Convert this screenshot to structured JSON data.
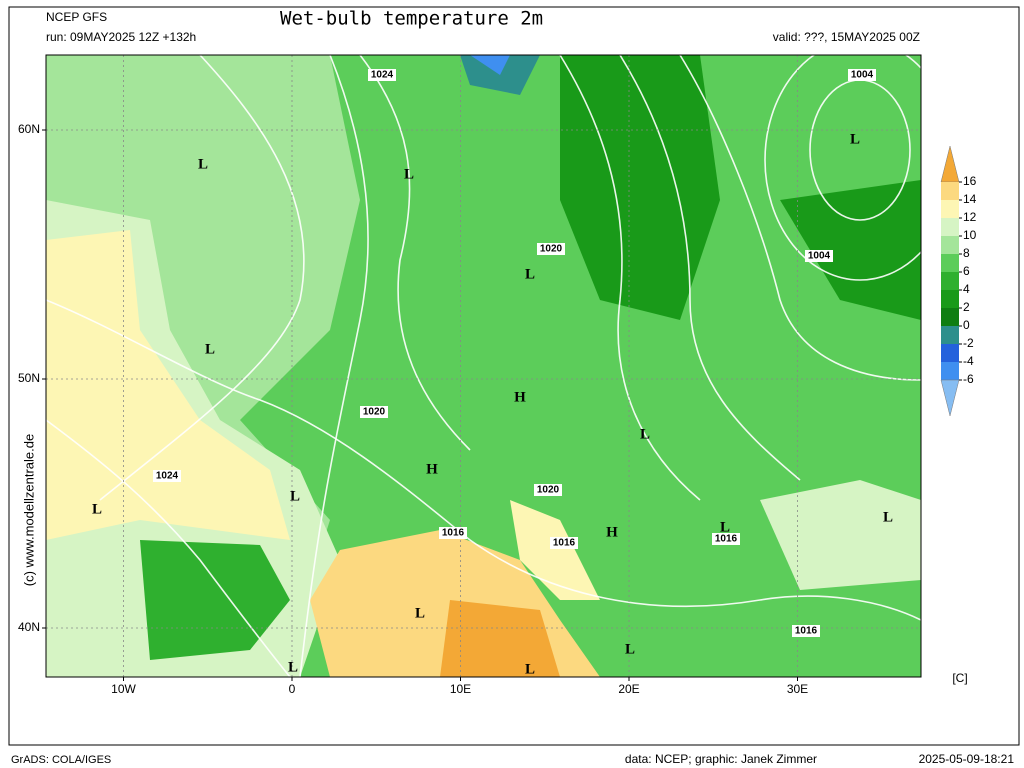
{
  "header": {
    "model": "NCEP GFS",
    "title": "Wet-bulb temperature 2m",
    "run": "run: 09MAY2025 12Z +132h",
    "valid": "valid: ???, 15MAY2025 00Z"
  },
  "map": {
    "lat_ticks": [
      {
        "value": 60,
        "label": "60N"
      },
      {
        "value": 50,
        "label": "50N"
      },
      {
        "value": 40,
        "label": "40N"
      }
    ],
    "lon_ticks": [
      {
        "value": -10,
        "label": "10W"
      },
      0,
      {
        "value": 10,
        "label": "10E"
      },
      {
        "value": 20,
        "label": "20E"
      },
      {
        "value": 30,
        "label": "30E"
      }
    ],
    "pressure_labels": [
      "1024",
      "1004",
      "1020",
      "1004",
      "1020",
      "1024",
      "1020",
      "1016",
      "1016",
      "1016",
      "1016"
    ],
    "centers": [
      "L",
      "L",
      "L",
      "L",
      "L",
      "H",
      "L",
      "H",
      "L",
      "L",
      "H",
      "L",
      "L",
      "L",
      "L",
      "L",
      "L"
    ]
  },
  "colorbar": {
    "ticks": [
      16,
      14,
      12,
      10,
      8,
      6,
      4,
      2,
      0,
      -2,
      -4,
      -6
    ],
    "colors": [
      "#f3a836",
      "#fcd980",
      "#fdf6b4",
      "#d6f4c4",
      "#a4e59a",
      "#5ccd5a",
      "#2fb02f",
      "#199a19",
      "#0f7e12",
      "#2d8f8c",
      "#2461dc",
      "#3f8ff0",
      "#86bdf2"
    ],
    "unit": "[C]"
  },
  "watermark": "(c) www.modellzentrale.de",
  "footer": {
    "left": "GrADS: COLA/IGES",
    "credit": "data: NCEP; graphic: Janek Zimmer",
    "timestamp": "2025-05-09-18:21"
  }
}
